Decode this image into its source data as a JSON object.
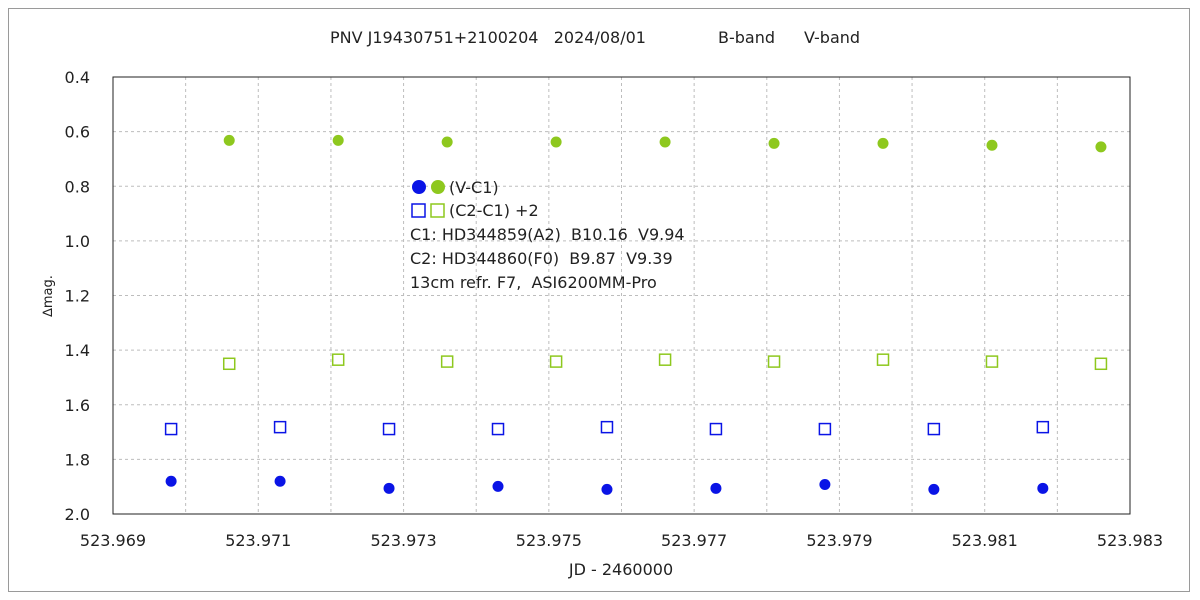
{
  "chart_data": {
    "type": "scatter",
    "title": {
      "text": "PNV J19430751+2100204   2024/08/01",
      "b_label": "B-band",
      "v_label": "V-band"
    },
    "xlabel": "JD - 2460000",
    "ylabel": "∆mag.",
    "xlim": [
      523.969,
      523.983
    ],
    "ylim": [
      0.4,
      2.0
    ],
    "y_inverted": true,
    "grid": true,
    "x_ticks": [
      "523.969",
      "523.971",
      "523.973",
      "523.975",
      "523.977",
      "523.979",
      "523.981",
      "523.983"
    ],
    "y_ticks": [
      "0.4",
      "0.6",
      "0.8",
      "1.0",
      "1.2",
      "1.4",
      "1.6",
      "1.8",
      "2.0"
    ],
    "colors": {
      "b_band": "#0a14e6",
      "v_band": "#8ec81e"
    },
    "series": [
      {
        "name": "(V-C1)",
        "band": "V",
        "marker": "circle",
        "color": "#8ec81e",
        "x": [
          523.9706,
          523.9721,
          523.9736,
          523.9751,
          523.9766,
          523.9781,
          523.9796,
          523.9811,
          523.9826
        ],
        "y": [
          0.632,
          0.632,
          0.638,
          0.638,
          0.638,
          0.643,
          0.643,
          0.65,
          0.656
        ]
      },
      {
        "name": "(C2-C1) +2",
        "band": "V",
        "marker": "square",
        "color": "#8ec81e",
        "x": [
          523.9706,
          523.9721,
          523.9736,
          523.9751,
          523.9766,
          523.9781,
          523.9796,
          523.9811,
          523.9826
        ],
        "y": [
          1.45,
          1.435,
          1.442,
          1.442,
          1.435,
          1.442,
          1.435,
          1.442,
          1.45
        ]
      },
      {
        "name": "(C2-C1) +2",
        "band": "B",
        "marker": "square",
        "color": "#0a14e6",
        "x": [
          523.9698,
          523.9713,
          523.9728,
          523.9743,
          523.9758,
          523.9773,
          523.9788,
          523.9803,
          523.9818
        ],
        "y": [
          1.689,
          1.682,
          1.689,
          1.689,
          1.682,
          1.689,
          1.689,
          1.689,
          1.682
        ]
      },
      {
        "name": "(V-C1)",
        "band": "B",
        "marker": "circle",
        "color": "#0a14e6",
        "x": [
          523.9698,
          523.9713,
          523.9728,
          523.9743,
          523.9758,
          523.9773,
          523.9788,
          523.9803,
          523.9818
        ],
        "y": [
          1.88,
          1.88,
          1.906,
          1.899,
          1.91,
          1.906,
          1.892,
          1.91,
          1.906
        ]
      }
    ],
    "legend": {
      "placement": "inside-top-center",
      "circle_label": "(V-C1)",
      "square_label": "(C2-C1) +2",
      "notes": [
        "C1: HD344859(A2)  B10.16  V9.94",
        "C2: HD344860(F0)  B9.87  V9.39",
        "13cm refr. F7,  ASI6200MM-Pro"
      ]
    }
  }
}
